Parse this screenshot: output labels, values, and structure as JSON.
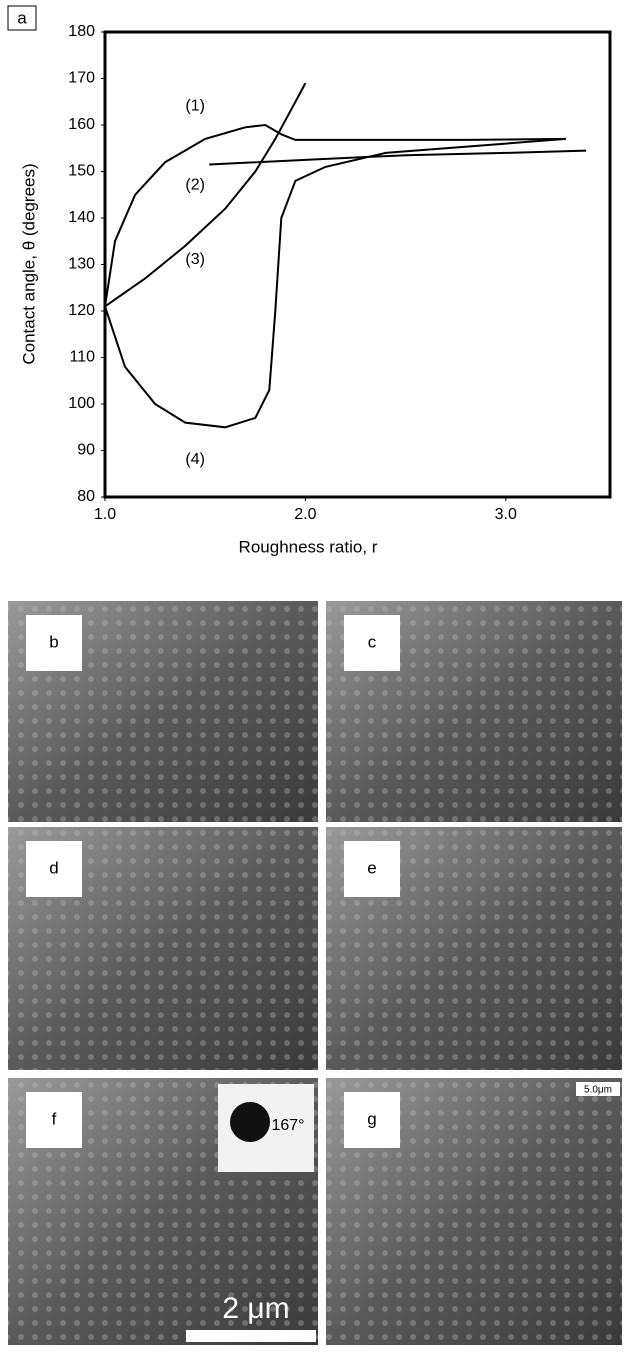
{
  "chart_data": {
    "type": "line",
    "panel_label": "a",
    "xlabel": "Roughness ratio, r",
    "ylabel": "Contact angle, θ (degrees)",
    "xlim": [
      1.0,
      3.52
    ],
    "ylim": [
      80,
      180
    ],
    "xticks": [
      {
        "value": 1,
        "label": "1.0"
      },
      {
        "value": 2,
        "label": "2.0"
      },
      {
        "value": 3,
        "label": "3.0"
      }
    ],
    "yticks": [
      80,
      90,
      100,
      110,
      120,
      130,
      140,
      150,
      160,
      170,
      180
    ],
    "series": [
      {
        "name": "(1)",
        "color": "#000000",
        "x": [
          1.0,
          1.05,
          1.15,
          1.3,
          1.5,
          1.7,
          1.8,
          1.88,
          1.95,
          2.2,
          2.8,
          3.3
        ],
        "values": [
          121,
          135,
          145,
          152,
          157,
          159.5,
          160,
          158,
          156.8,
          156.8,
          156.8,
          157
        ]
      },
      {
        "name": "(2)",
        "color": "#000000",
        "x": [
          1.52,
          2.0,
          2.5,
          3.0,
          3.4
        ],
        "values": [
          151.5,
          152.5,
          153.5,
          154,
          154.5
        ]
      },
      {
        "name": "(3)",
        "color": "#000000",
        "x": [
          1.0,
          1.2,
          1.4,
          1.6,
          1.75,
          1.85,
          1.95,
          2.0
        ],
        "values": [
          121,
          127,
          134,
          142,
          150,
          157,
          165,
          169
        ]
      },
      {
        "name": "(4)",
        "color": "#000000",
        "x": [
          1.0,
          1.1,
          1.25,
          1.4,
          1.6,
          1.75,
          1.82,
          1.85,
          1.88,
          1.95,
          2.1,
          2.4,
          3.0,
          3.3
        ],
        "values": [
          121,
          108,
          100,
          96,
          95,
          97,
          103,
          120,
          140,
          148,
          151,
          154,
          156,
          157
        ]
      }
    ]
  },
  "panels": [
    {
      "label": "b",
      "scale": null
    },
    {
      "label": "c",
      "scale": null
    },
    {
      "label": "d",
      "scale": null
    },
    {
      "label": "e",
      "scale": null
    },
    {
      "label": "f",
      "scale": "2 μm",
      "inset": "167°"
    },
    {
      "label": "g",
      "scale": "5.0μm"
    }
  ]
}
